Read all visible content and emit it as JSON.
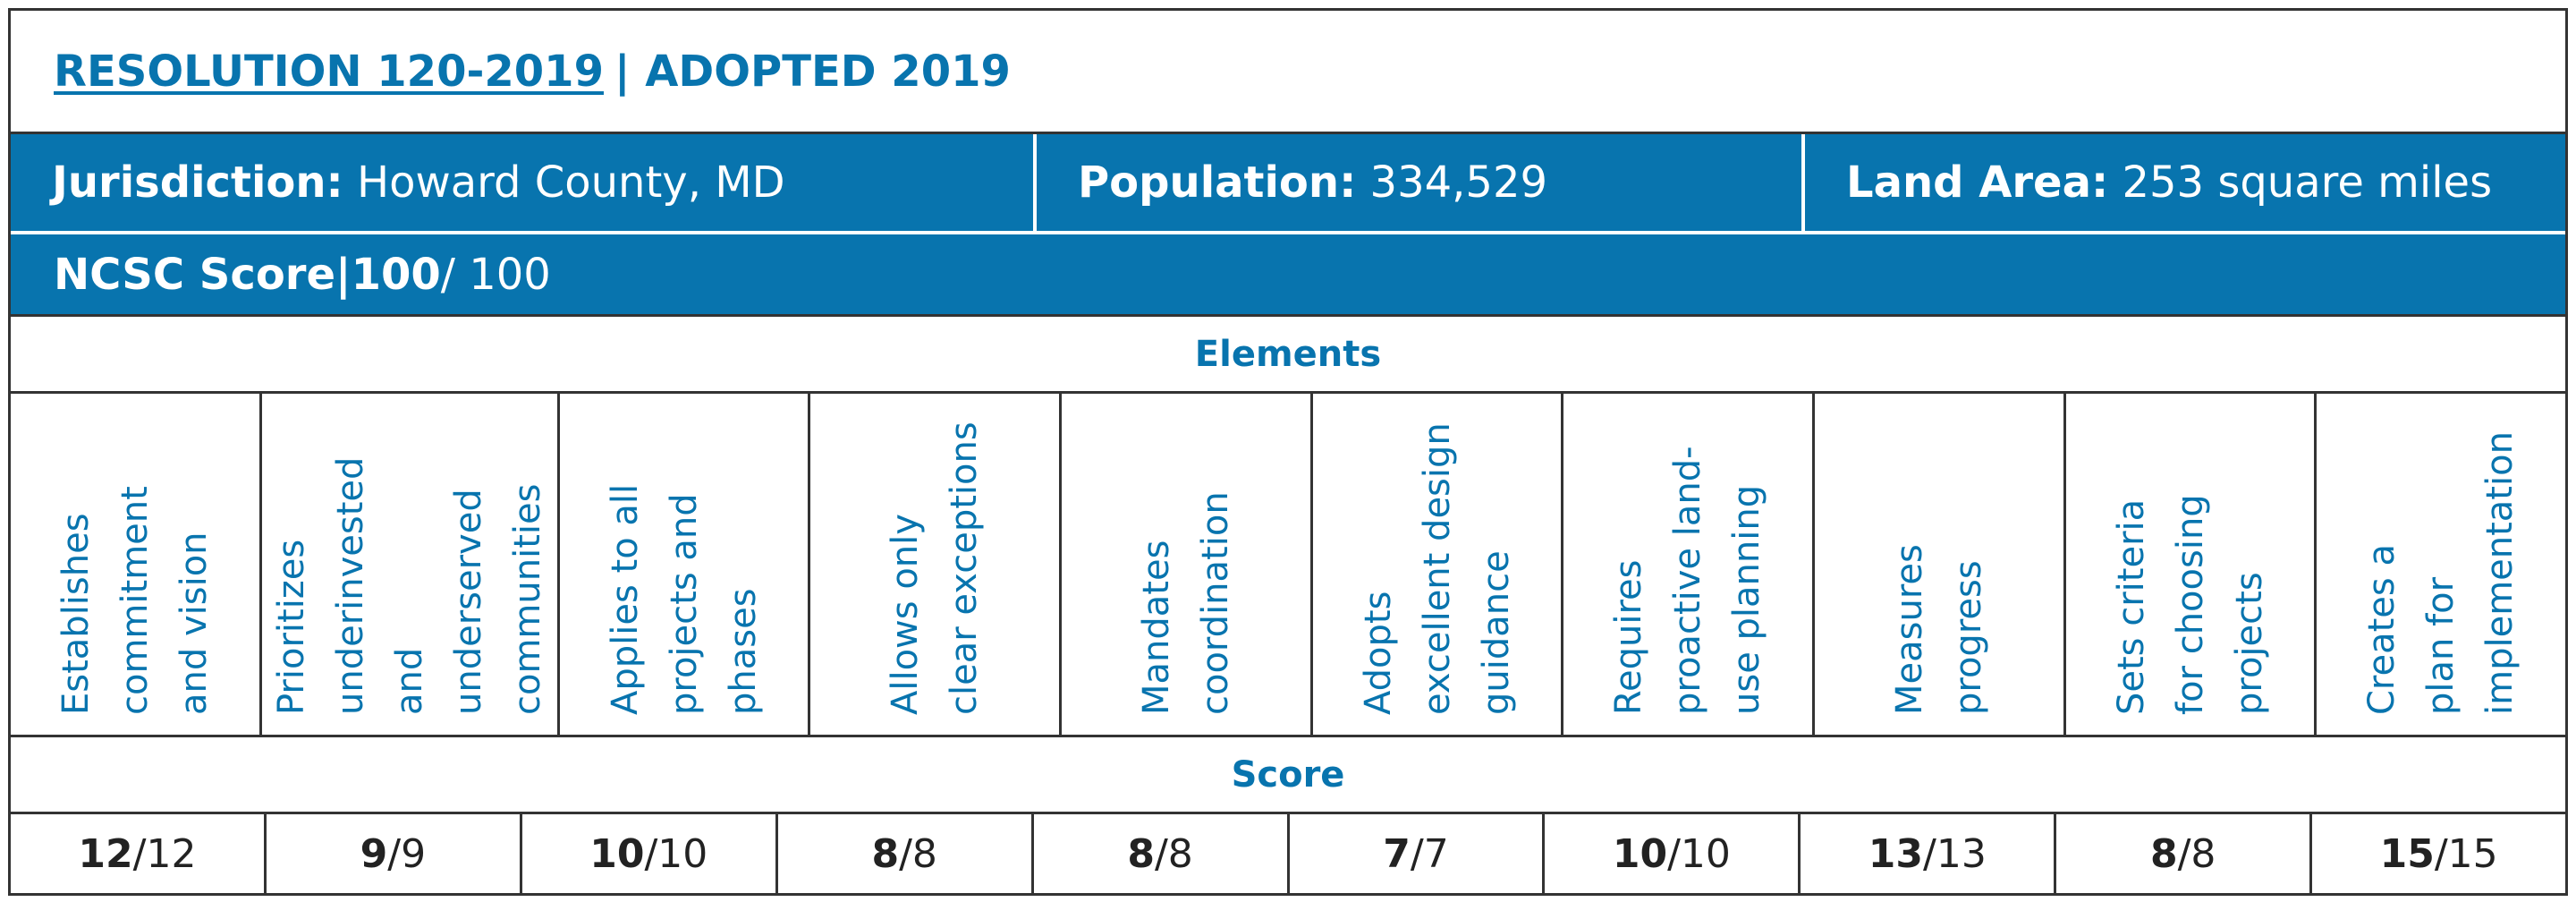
{
  "header": {
    "link": "RESOLUTION 120-2019",
    "rest": "| ADOPTED 2019"
  },
  "info": [
    {
      "label": "Jurisdiction:",
      "value": "Howard County, MD"
    },
    {
      "label": "Population:",
      "value": "334,529"
    },
    {
      "label": "Land Area:",
      "value": "253 square miles"
    }
  ],
  "ncsc": {
    "label": "NCSC Score",
    "separator": "|",
    "score": "100",
    "max": "/ 100"
  },
  "elements_heading": "Elements",
  "elements": [
    {
      "lines": [
        "Establishes",
        "commitment",
        "and vision"
      ]
    },
    {
      "lines": [
        "Prioritizes",
        "underinvested",
        "and underserved",
        "communities"
      ]
    },
    {
      "lines": [
        "Applies to all",
        "projects and",
        "phases"
      ]
    },
    {
      "lines": [
        "Allows only",
        "clear exceptions"
      ]
    },
    {
      "lines": [
        "Mandates",
        "coordination"
      ]
    },
    {
      "lines": [
        "Adopts",
        "excellent design",
        "guidance"
      ]
    },
    {
      "lines": [
        "Requires",
        "proactive land-",
        "use planning"
      ]
    },
    {
      "lines": [
        "Measures",
        "progress"
      ]
    },
    {
      "lines": [
        "Sets criteria",
        "for choosing",
        "projects"
      ]
    },
    {
      "lines": [
        "Creates a",
        "plan for",
        "implementation"
      ]
    }
  ],
  "score_heading": "Score",
  "scores": [
    {
      "score": "12",
      "max": "/12"
    },
    {
      "score": "9",
      "max": "/9"
    },
    {
      "score": "10",
      "max": "/10"
    },
    {
      "score": "8",
      "max": "/8"
    },
    {
      "score": "8",
      "max": "/8"
    },
    {
      "score": "7",
      "max": "/7"
    },
    {
      "score": "10",
      "max": "/10"
    },
    {
      "score": "13",
      "max": "/13"
    },
    {
      "score": "8",
      "max": "/8"
    },
    {
      "score": "15",
      "max": "/15"
    }
  ]
}
